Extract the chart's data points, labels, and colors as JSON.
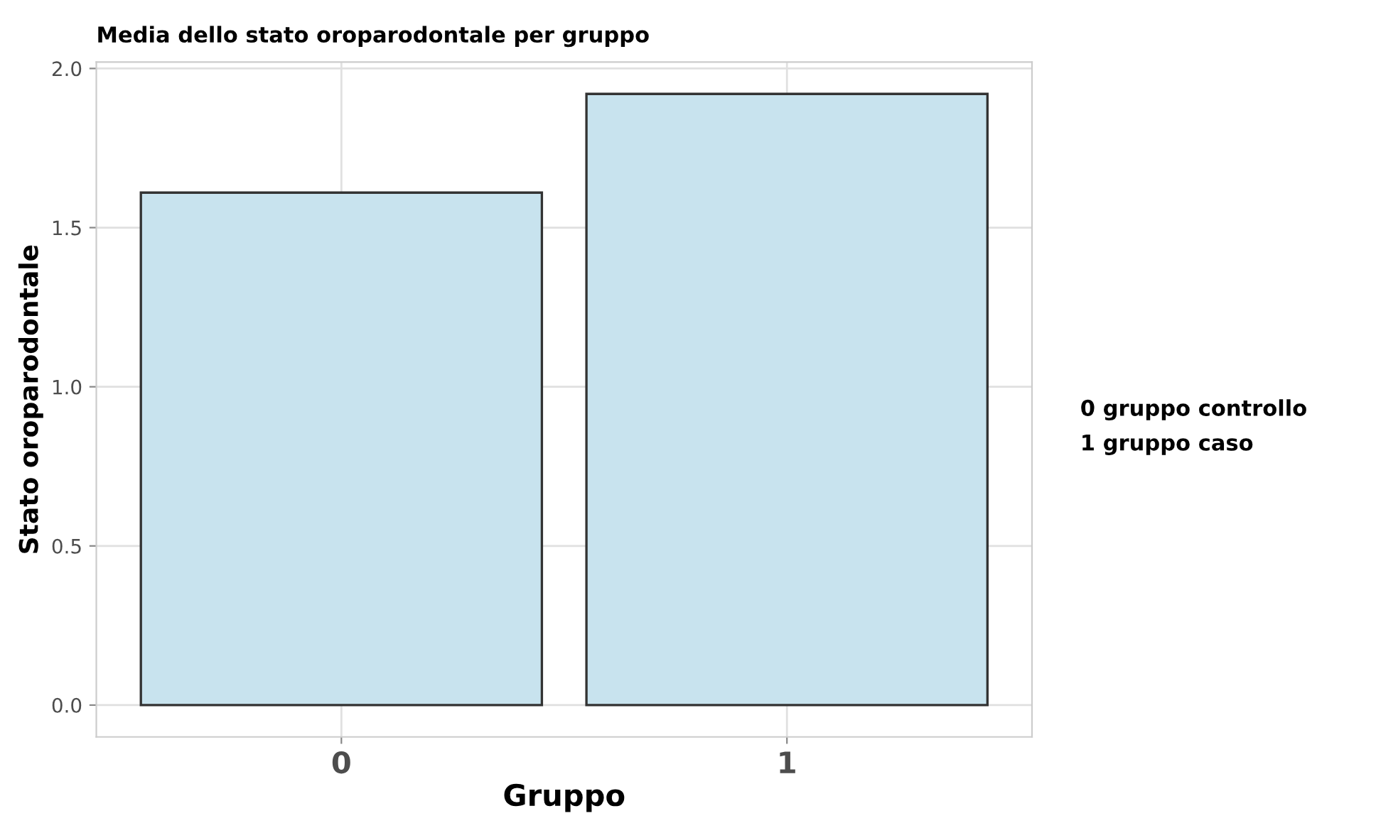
{
  "chart_data": {
    "type": "bar",
    "title": "Media dello stato oroparodontale per gruppo",
    "xlabel": "Gruppo",
    "ylabel": "Stato oroparodontale",
    "categories": [
      "0",
      "1"
    ],
    "values": [
      1.61,
      1.92
    ],
    "color": "#c8e3ee",
    "ylim": [
      -0.1,
      2.02
    ],
    "yticks": [
      {
        "value": 0,
        "label": "0.0"
      },
      0.5,
      {
        "value": 1,
        "label": "1.0"
      },
      1.5,
      {
        "value": 2,
        "label": "2.0"
      }
    ],
    "grid": true,
    "annotations": [
      "0 gruppo controllo",
      "1 gruppo caso"
    ]
  }
}
